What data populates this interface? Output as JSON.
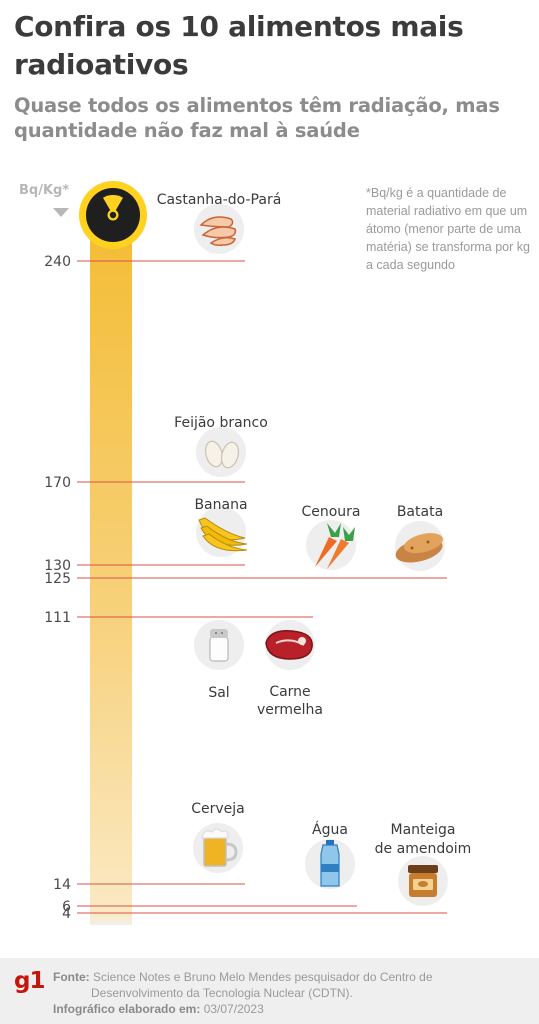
{
  "title": "Confira os 10 alimentos mais radioativos",
  "subtitle": "Quase todos os alimentos têm radiação, mas quantidade não faz mal à saúde",
  "unit_label": "Bq/Kg*",
  "note": "*Bq/kg é a quantidade de material radiativo em que um átomo (menor parte de uma matéria) se transforma por kg a cada segundo",
  "icons": {
    "top": "radiation-icon"
  },
  "colors": {
    "bar": "#f5c13e",
    "line": "#d9534a",
    "radiation": "#ffd21f"
  },
  "chart_data": {
    "type": "bar",
    "ylabel": "Bq/Kg*",
    "ticks": [
      240,
      170,
      130,
      125,
      111,
      14,
      6,
      4
    ],
    "items": [
      {
        "name": "Castanha-do-Pará",
        "value": 240,
        "icon": "brazil-nut-icon"
      },
      {
        "name": "Feijão branco",
        "value": 170,
        "icon": "white-bean-icon"
      },
      {
        "name": "Banana",
        "value": 130,
        "icon": "banana-icon"
      },
      {
        "name": "Cenoura",
        "value": 125,
        "icon": "carrot-icon"
      },
      {
        "name": "Batata",
        "value": 125,
        "icon": "potato-icon"
      },
      {
        "name": "Sal",
        "value": 111,
        "icon": "salt-shaker-icon"
      },
      {
        "name": "Carne vermelha",
        "value": 111,
        "icon": "steak-icon"
      },
      {
        "name": "Cerveja",
        "value": 14,
        "icon": "beer-mug-icon"
      },
      {
        "name": "Água",
        "value": 6,
        "icon": "water-bottle-icon"
      },
      {
        "name": "Manteiga de amendoim",
        "value": 4,
        "icon": "peanut-butter-icon"
      }
    ]
  },
  "footer": {
    "logo": "g1",
    "source_label": "Fonte:",
    "source_line1": "Science Notes e Bruno Melo Mendes pesquisador do Centro de",
    "source_line2": "Desenvolvimento da Tecnologia Nuclear (CDTN).",
    "credit_label": "Infográfico elaborado em:",
    "credit_date": "03/07/2023"
  }
}
